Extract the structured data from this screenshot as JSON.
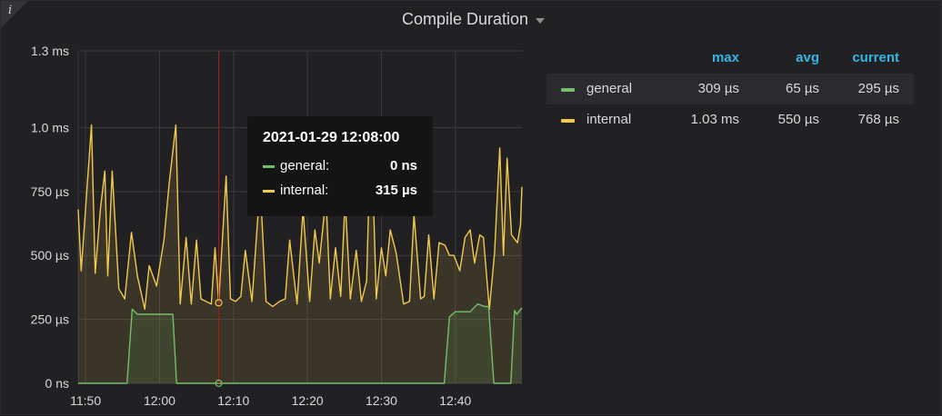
{
  "panel": {
    "title": "Compile Duration",
    "info_icon": "i",
    "info_icon_name": "info-icon",
    "title_menu_icon": "caret-down-icon"
  },
  "legend": {
    "columns": {
      "max": "max",
      "avg": "avg",
      "current": "current"
    },
    "rows": [
      {
        "name": "general",
        "max": "309 µs",
        "avg": "65 µs",
        "current": "295 µs",
        "color": "#73bf69"
      },
      {
        "name": "internal",
        "max": "1.03 ms",
        "avg": "550 µs",
        "current": "768 µs",
        "color": "#f2c94c"
      }
    ]
  },
  "tooltip": {
    "time": "2021-01-29 12:08:00",
    "rows": [
      {
        "name": "general:",
        "value": "0 ns",
        "color": "#73bf69"
      },
      {
        "name": "internal:",
        "value": "315 µs",
        "color": "#f2c94c"
      }
    ]
  },
  "chart_data": {
    "type": "line",
    "x_unit": "time",
    "x_range": [
      "11:49",
      "12:49"
    ],
    "x_ticks": [
      "11:50",
      "12:00",
      "12:10",
      "12:20",
      "12:30",
      "12:40"
    ],
    "y_unit": "µs",
    "ylim": [
      0,
      1300
    ],
    "y_ticks": [
      {
        "value": 0,
        "label": "0 ns"
      },
      {
        "value": 250,
        "label": "250 µs"
      },
      {
        "value": 500,
        "label": "500 µs"
      },
      {
        "value": 750,
        "label": "750 µs"
      },
      {
        "value": 1000,
        "label": "1.0 ms"
      },
      {
        "value": 1300,
        "label": "1.3 ms"
      }
    ],
    "grid": true,
    "cursor_time": "12:08",
    "series": [
      {
        "name": "general",
        "color": "#73bf69",
        "fill": true,
        "points": [
          [
            "11:49",
            0
          ],
          [
            "11:55.6",
            0
          ],
          [
            "11:56.3",
            290
          ],
          [
            "11:57",
            270
          ],
          [
            "11:58",
            270
          ],
          [
            "11:59",
            270
          ],
          [
            "12:01",
            270
          ],
          [
            "12:01.8",
            270
          ],
          [
            "12:02.3",
            0
          ],
          [
            "12:10",
            0
          ],
          [
            "12:20",
            0
          ],
          [
            "12:30",
            0
          ],
          [
            "12:37",
            0
          ],
          [
            "12:38.5",
            0
          ],
          [
            "12:39.2",
            260
          ],
          [
            "12:40",
            280
          ],
          [
            "12:41",
            280
          ],
          [
            "12:42",
            280
          ],
          [
            "12:43",
            310
          ],
          [
            "12:44",
            300
          ],
          [
            "12:44.5",
            300
          ],
          [
            "12:45.2",
            0
          ],
          [
            "12:47.5",
            0
          ],
          [
            "12:48",
            285
          ],
          [
            "12:48.3",
            270
          ],
          [
            "12:49",
            295
          ]
        ]
      },
      {
        "name": "internal",
        "color": "#f2c94c",
        "fill": true,
        "points": [
          [
            "11:49",
            680
          ],
          [
            "11:49.4",
            440
          ],
          [
            "11:50.8",
            1010
          ],
          [
            "11:51.3",
            430
          ],
          [
            "11:52",
            680
          ],
          [
            "11:52.6",
            830
          ],
          [
            "11:53",
            420
          ],
          [
            "11:53.6",
            830
          ],
          [
            "11:54.5",
            370
          ],
          [
            "11:55.3",
            330
          ],
          [
            "11:56.2",
            590
          ],
          [
            "11:57",
            420
          ],
          [
            "11:58",
            290
          ],
          [
            "11:58.6",
            460
          ],
          [
            "11:59.6",
            380
          ],
          [
            "12:00.6",
            560
          ],
          [
            "12:01.3",
            780
          ],
          [
            "12:02.2",
            1010
          ],
          [
            "12:02.8",
            310
          ],
          [
            "12:03.6",
            570
          ],
          [
            "12:04.3",
            310
          ],
          [
            "12:05",
            560
          ],
          [
            "12:05.6",
            330
          ],
          [
            "12:06.3",
            320
          ],
          [
            "12:07",
            310
          ],
          [
            "12:07.5",
            530
          ],
          [
            "12:08",
            315
          ],
          [
            "12:09",
            810
          ],
          [
            "12:09.6",
            330
          ],
          [
            "12:10.3",
            320
          ],
          [
            "12:11",
            340
          ],
          [
            "12:11.6",
            520
          ],
          [
            "12:12.5",
            320
          ],
          [
            "12:13.6",
            780
          ],
          [
            "12:14.4",
            320
          ],
          [
            "12:15.3",
            300
          ],
          [
            "12:16.2",
            320
          ],
          [
            "12:17",
            330
          ],
          [
            "12:17.6",
            560
          ],
          [
            "12:18.6",
            310
          ],
          [
            "12:19.4",
            680
          ],
          [
            "12:20.3",
            320
          ],
          [
            "12:21",
            600
          ],
          [
            "12:21.6",
            470
          ],
          [
            "12:22.5",
            730
          ],
          [
            "12:23.1",
            330
          ],
          [
            "12:23.8",
            530
          ],
          [
            "12:24.5",
            340
          ],
          [
            "12:25.1",
            720
          ],
          [
            "12:25.8",
            330
          ],
          [
            "12:26.6",
            520
          ],
          [
            "12:27.3",
            320
          ],
          [
            "12:28",
            400
          ],
          [
            "12:28.6",
            1040
          ],
          [
            "12:29.3",
            330
          ],
          [
            "12:30",
            530
          ],
          [
            "12:30.6",
            420
          ],
          [
            "12:31.2",
            600
          ],
          [
            "12:32",
            510
          ],
          [
            "12:33",
            310
          ],
          [
            "12:33.8",
            320
          ],
          [
            "12:34.4",
            660
          ],
          [
            "12:35.3",
            330
          ],
          [
            "12:35.8",
            340
          ],
          [
            "12:36.4",
            580
          ],
          [
            "12:37.1",
            330
          ],
          [
            "12:37.8",
            550
          ],
          [
            "12:38.6",
            540
          ],
          [
            "12:39.2",
            500
          ],
          [
            "12:39.8",
            500
          ],
          [
            "12:40.6",
            440
          ],
          [
            "12:41.3",
            570
          ],
          [
            "12:42",
            600
          ],
          [
            "12:42.6",
            470
          ],
          [
            "12:43.3",
            580
          ],
          [
            "12:43.8",
            570
          ],
          [
            "12:44.6",
            290
          ],
          [
            "12:45.3",
            510
          ],
          [
            "12:46",
            920
          ],
          [
            "12:46.5",
            500
          ],
          [
            "12:47",
            880
          ],
          [
            "12:47.6",
            580
          ],
          [
            "12:48.4",
            550
          ],
          [
            "12:48.8",
            620
          ],
          [
            "12:49",
            768
          ]
        ]
      }
    ]
  }
}
